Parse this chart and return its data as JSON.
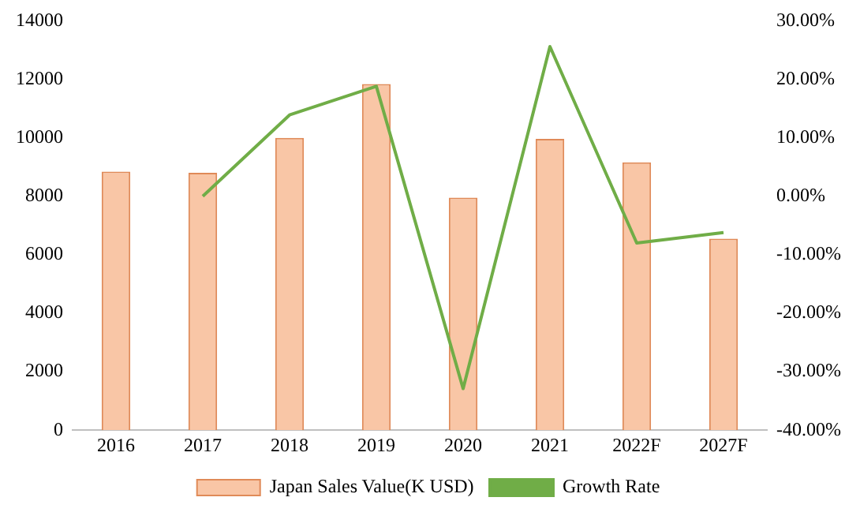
{
  "chart_data": {
    "type": "bar",
    "categories": [
      "2016",
      "2017",
      "2018",
      "2019",
      "2020",
      "2021",
      "2022F",
      "2027F"
    ],
    "series": [
      {
        "name": "Japan Sales Value(K USD)",
        "color": "#f9c6a6",
        "values": [
          8840,
          8800,
          10000,
          11840,
          7950,
          9960,
          9160,
          6550
        ]
      },
      {
        "name": "Growth Rate",
        "type": "line",
        "axis": "y2",
        "color": "#70ad47",
        "values": [
          null,
          0,
          13.9,
          18.8,
          -32.9,
          25.6,
          -8.0,
          -6.2
        ]
      }
    ],
    "ylim": [
      0,
      14000
    ],
    "yticks": [
      0,
      2000,
      4000,
      6000,
      8000,
      10000,
      12000,
      14000
    ],
    "y2lim": [
      -40,
      30
    ],
    "y2ticks": [
      {
        "value": -40,
        "label": "-40.00%"
      },
      {
        "value": -30,
        "label": "-30.00%"
      },
      {
        "value": -20,
        "label": "-20.00%"
      },
      {
        "value": -10,
        "label": "-10.00%"
      },
      {
        "value": 0,
        "label": "0.00%"
      },
      {
        "value": 10,
        "label": "10.00%"
      },
      {
        "value": 20,
        "label": "20.00%"
      },
      {
        "value": 30,
        "label": "30.00%"
      }
    ],
    "grid": false,
    "legend": "bottom",
    "marker": "none"
  }
}
